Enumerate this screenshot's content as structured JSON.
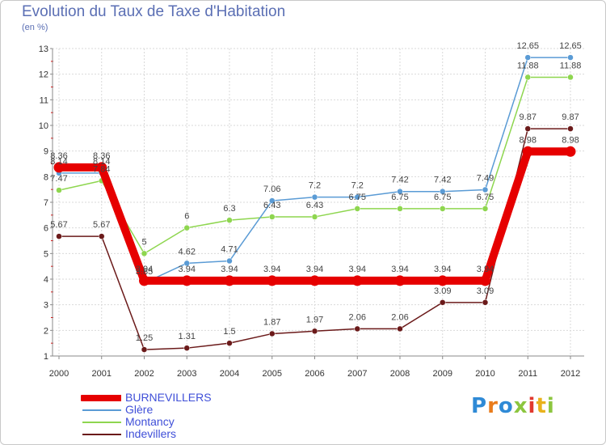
{
  "title": "Evolution du Taux de Taxe d'Habitation",
  "subtitle": "(en %)",
  "logo": {
    "text": [
      "P",
      "r",
      "o",
      "x",
      "i",
      "t",
      "i"
    ],
    "colors": [
      "#2f8ad6",
      "#e97c1c",
      "#2f8ad6",
      "#8cc63f",
      "#e13a2f",
      "#e9b21c",
      "#8cc63f"
    ]
  },
  "chart_data": {
    "type": "line",
    "x": [
      "2000",
      "2001",
      "2002",
      "2003",
      "2004",
      "2005",
      "2006",
      "2007",
      "2008",
      "2009",
      "2010",
      "2011",
      "2012"
    ],
    "ylim": [
      1,
      13
    ],
    "yticks": [
      "1",
      "2",
      "3",
      "4",
      "5",
      "6",
      "7",
      "8",
      "9",
      "10",
      "11",
      "12",
      "13"
    ],
    "grid": true,
    "legend_position": "bottom-left",
    "series": [
      {
        "name": "BURNEVILLERS",
        "color": "#e60000",
        "values": [
          8.36,
          8.36,
          3.94,
          3.94,
          3.94,
          3.94,
          3.94,
          3.94,
          3.94,
          3.94,
          3.94,
          8.98,
          8.98
        ],
        "labels": [
          "8.36",
          "8.36",
          "3.94",
          "3.94",
          "3.94",
          "3.94",
          "3.94",
          "3.94",
          "3.94",
          "3.94",
          "3.94",
          "8.98",
          "8.98"
        ]
      },
      {
        "name": "Glère",
        "color": "#5a9bd5",
        "values": [
          8.14,
          8.14,
          3.85,
          4.62,
          4.71,
          7.06,
          7.2,
          7.2,
          7.42,
          7.42,
          7.49,
          12.65,
          12.65
        ],
        "labels": [
          "8.14",
          "8.14",
          "3.85",
          "4.62",
          "4.71",
          "7.06",
          "7.2",
          "7.2",
          "7.42",
          "7.42",
          "7.49",
          "12.65",
          "12.65"
        ]
      },
      {
        "name": "Montancy",
        "color": "#8ed64f",
        "values": [
          7.47,
          7.84,
          5,
          6,
          6.3,
          6.43,
          6.43,
          6.75,
          6.75,
          6.75,
          6.75,
          11.88,
          11.88
        ],
        "labels": [
          "7.47",
          "7.84",
          "5",
          "6",
          "6.3",
          "6.43",
          "6.43",
          "6.75",
          "6.75",
          "6.75",
          "6.75",
          "11.88",
          "11.88"
        ]
      },
      {
        "name": "Indevillers",
        "color": "#6b1a1a",
        "values": [
          5.67,
          5.67,
          1.25,
          1.31,
          1.5,
          1.87,
          1.97,
          2.06,
          2.06,
          3.09,
          3.09,
          9.87,
          9.87
        ],
        "labels": [
          "5.67",
          "5.67",
          "1.25",
          "1.31",
          "1.5",
          "1.87",
          "1.97",
          "2.06",
          "2.06",
          "3.09",
          "3.09",
          "9.87",
          "9.87"
        ]
      }
    ]
  }
}
